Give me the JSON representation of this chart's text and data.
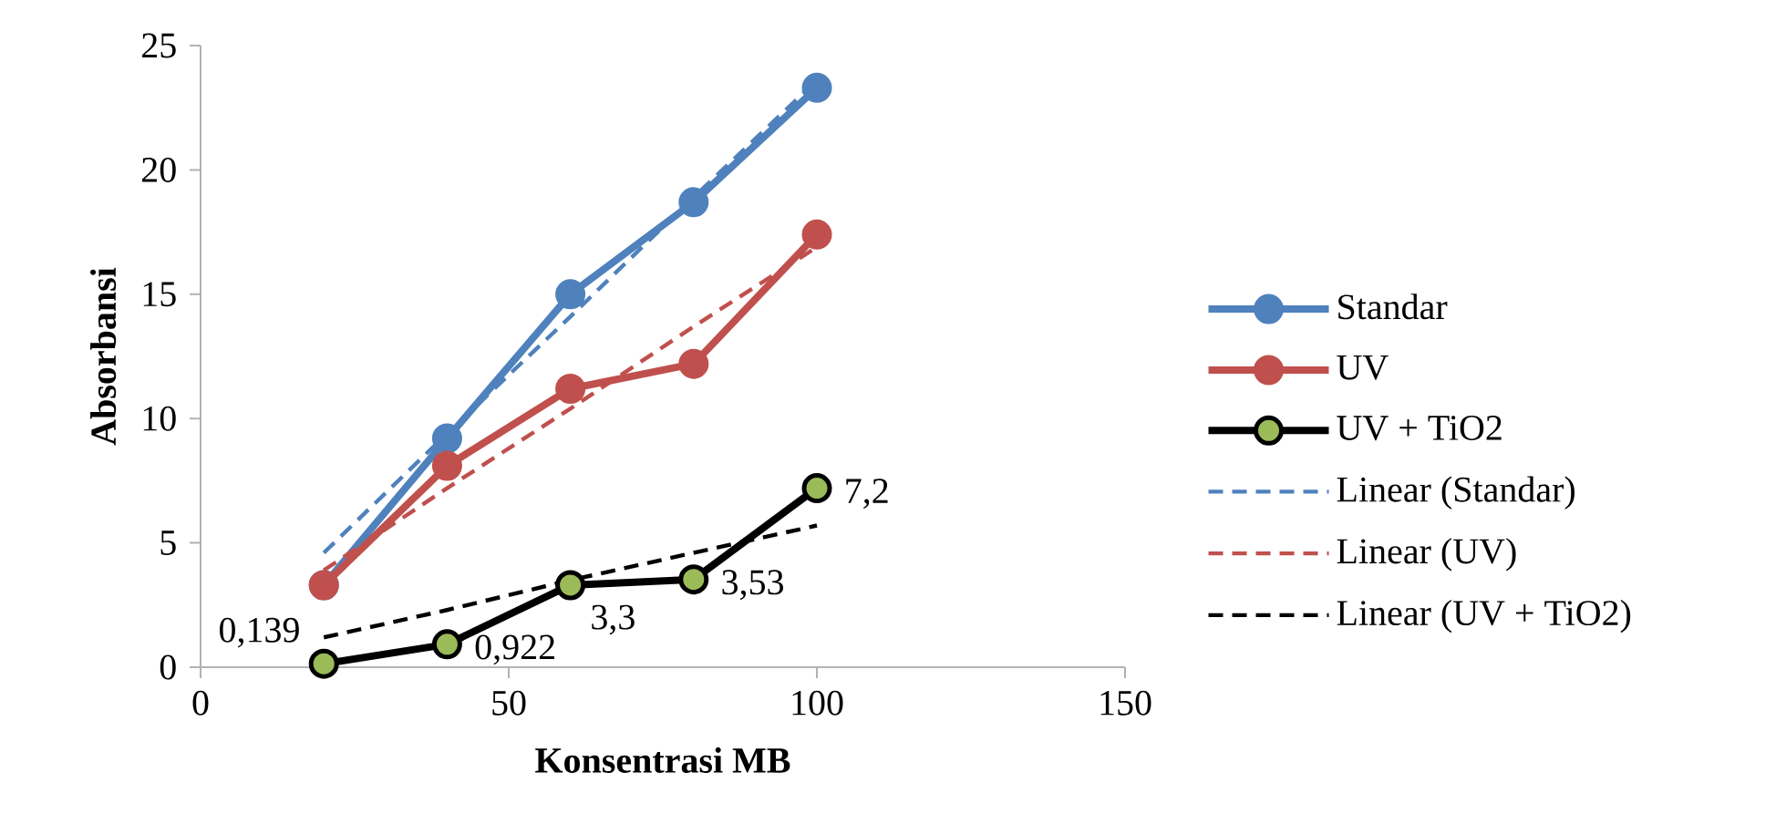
{
  "chart_data": {
    "type": "line",
    "xlabel": "Konsentrasi MB",
    "ylabel": "Absorbansi",
    "x": [
      20,
      40,
      60,
      80,
      100
    ],
    "xlim": [
      0,
      150
    ],
    "xticks": [
      0,
      50,
      100,
      150
    ],
    "ylim": [
      0,
      25
    ],
    "yticks": [
      0,
      5,
      10,
      15,
      20,
      25
    ],
    "grid": false,
    "legend": "right",
    "marker": "circle",
    "line_style": "solid",
    "series": [
      {
        "name": "Standar",
        "color": "#4f81bd",
        "values": [
          3.3,
          9.2,
          15.0,
          18.7,
          23.3
        ]
      },
      {
        "name": "UV",
        "color": "#c0504d",
        "values": [
          3.3,
          8.1,
          11.2,
          12.2,
          17.4
        ]
      },
      {
        "name": "UV + TiO2",
        "color": "#000000",
        "values": [
          0.139,
          0.922,
          3.3,
          3.53,
          7.2
        ],
        "value_labels": [
          "0,139",
          "0,922",
          "3,3",
          "3,53",
          "7,2"
        ]
      },
      {
        "name": "Linear (Standar)",
        "color": "#4f81bd",
        "values": [
          4.6,
          9.4,
          14.1,
          18.9,
          23.6
        ],
        "marker": "none",
        "line_style": "dashed"
      },
      {
        "name": "Linear (UV)",
        "color": "#c0504d",
        "values": [
          3.9,
          7.2,
          10.4,
          13.7,
          16.9
        ],
        "marker": "none",
        "line_style": "dashed"
      },
      {
        "name": "Linear (UV + TiO2)",
        "color": "#000000",
        "values": [
          1.2,
          2.3,
          3.5,
          4.6,
          5.7
        ],
        "marker": "none",
        "line_style": "dashed"
      }
    ]
  }
}
